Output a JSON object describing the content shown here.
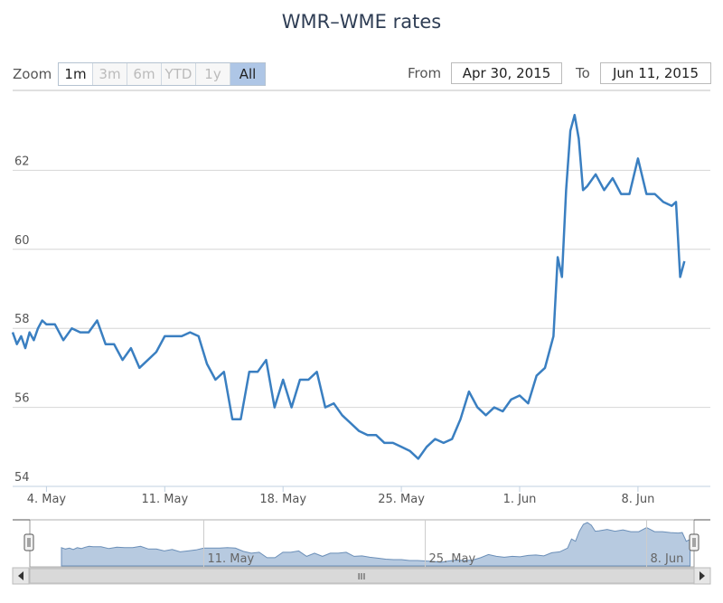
{
  "chart_data": {
    "type": "line",
    "title": "WMR–WME rates",
    "xlabel": "",
    "ylabel": "",
    "ylim": [
      54,
      64
    ],
    "y_ticks": [
      "54",
      "56",
      "58",
      "60",
      "62"
    ],
    "x_ticks": [
      "4. May",
      "11. May",
      "18. May",
      "25. May",
      "1. Jun",
      "8. Jun"
    ],
    "navigator_ticks": [
      "11. May",
      "25. May",
      "8. Jun"
    ],
    "series_color": "#3a7fc1",
    "series": [
      {
        "name": "",
        "x": [
          "2015-05-02",
          "2015-05-02 06:00",
          "2015-05-02 12:00",
          "2015-05-02 18:00",
          "2015-05-03",
          "2015-05-03 06:00",
          "2015-05-03 12:00",
          "2015-05-03 18:00",
          "2015-05-04",
          "2015-05-04 12:00",
          "2015-05-05",
          "2015-05-05 12:00",
          "2015-05-06",
          "2015-05-06 12:00",
          "2015-05-07",
          "2015-05-07 12:00",
          "2015-05-08",
          "2015-05-08 12:00",
          "2015-05-09",
          "2015-05-09 12:00",
          "2015-05-10",
          "2015-05-10 12:00",
          "2015-05-11",
          "2015-05-11 12:00",
          "2015-05-12",
          "2015-05-12 12:00",
          "2015-05-13",
          "2015-05-13 12:00",
          "2015-05-14",
          "2015-05-14 12:00",
          "2015-05-15",
          "2015-05-15 12:00",
          "2015-05-16",
          "2015-05-16 12:00",
          "2015-05-17",
          "2015-05-17 12:00",
          "2015-05-18",
          "2015-05-18 12:00",
          "2015-05-19",
          "2015-05-19 12:00",
          "2015-05-20",
          "2015-05-20 12:00",
          "2015-05-21",
          "2015-05-21 12:00",
          "2015-05-22",
          "2015-05-22 12:00",
          "2015-05-23",
          "2015-05-23 12:00",
          "2015-05-24",
          "2015-05-24 12:00",
          "2015-05-25",
          "2015-05-25 12:00",
          "2015-05-26",
          "2015-05-26 12:00",
          "2015-05-27",
          "2015-05-27 12:00",
          "2015-05-28",
          "2015-05-28 12:00",
          "2015-05-29",
          "2015-05-29 12:00",
          "2015-05-30",
          "2015-05-30 12:00",
          "2015-05-31",
          "2015-05-31 12:00",
          "2015-06-01",
          "2015-06-01 12:00",
          "2015-06-02",
          "2015-06-02 12:00",
          "2015-06-03",
          "2015-06-03 06:00",
          "2015-06-03 12:00",
          "2015-06-03 18:00",
          "2015-06-04",
          "2015-06-04 06:00",
          "2015-06-04 12:00",
          "2015-06-04 18:00",
          "2015-06-05",
          "2015-06-05 12:00",
          "2015-06-06",
          "2015-06-06 12:00",
          "2015-06-07",
          "2015-06-07 12:00",
          "2015-06-08",
          "2015-06-08 12:00",
          "2015-06-09",
          "2015-06-09 12:00",
          "2015-06-10",
          "2015-06-10 06:00",
          "2015-06-10 12:00",
          "2015-06-10 18:00"
        ],
        "y": [
          57.9,
          57.6,
          57.8,
          57.5,
          57.9,
          57.7,
          58.0,
          58.2,
          58.1,
          58.1,
          57.7,
          58.0,
          57.9,
          57.9,
          58.2,
          57.6,
          57.6,
          57.2,
          57.5,
          57.0,
          57.2,
          57.4,
          57.8,
          57.8,
          57.8,
          57.9,
          57.8,
          57.1,
          56.7,
          56.9,
          55.7,
          55.7,
          56.9,
          56.9,
          57.2,
          56.0,
          56.7,
          56.0,
          56.7,
          56.7,
          56.9,
          56.0,
          56.1,
          55.8,
          55.6,
          55.4,
          55.3,
          55.3,
          55.1,
          55.1,
          55.0,
          54.9,
          54.7,
          55.0,
          55.2,
          55.1,
          55.2,
          55.7,
          56.4,
          56.0,
          55.8,
          56.0,
          55.9,
          56.2,
          56.3,
          56.1,
          56.8,
          57.0,
          57.8,
          59.8,
          59.3,
          61.5,
          63.0,
          63.4,
          62.8,
          61.5,
          61.6,
          61.9,
          61.5,
          61.8,
          61.4,
          61.4,
          62.3,
          61.4,
          61.4,
          61.2,
          61.1,
          61.2,
          59.3,
          59.7
        ]
      }
    ],
    "navigator": {
      "window": [
        "2015-04-30",
        "2015-06-11"
      ],
      "fill": "#b7cae0",
      "line": "#6b8fb8"
    }
  },
  "range_selector": {
    "zoom_label": "Zoom",
    "buttons": [
      {
        "label": "1m",
        "enabled": true,
        "active": false
      },
      {
        "label": "3m",
        "enabled": false,
        "active": false
      },
      {
        "label": "6m",
        "enabled": false,
        "active": false
      },
      {
        "label": "YTD",
        "enabled": false,
        "active": false
      },
      {
        "label": "1y",
        "enabled": false,
        "active": false
      },
      {
        "label": "All",
        "enabled": true,
        "active": true
      }
    ],
    "from_label": "From",
    "from_value": "Apr 30, 2015",
    "to_label": "To",
    "to_value": "Jun 11, 2015"
  },
  "scrollbar": {
    "grip_glyph": "III"
  }
}
